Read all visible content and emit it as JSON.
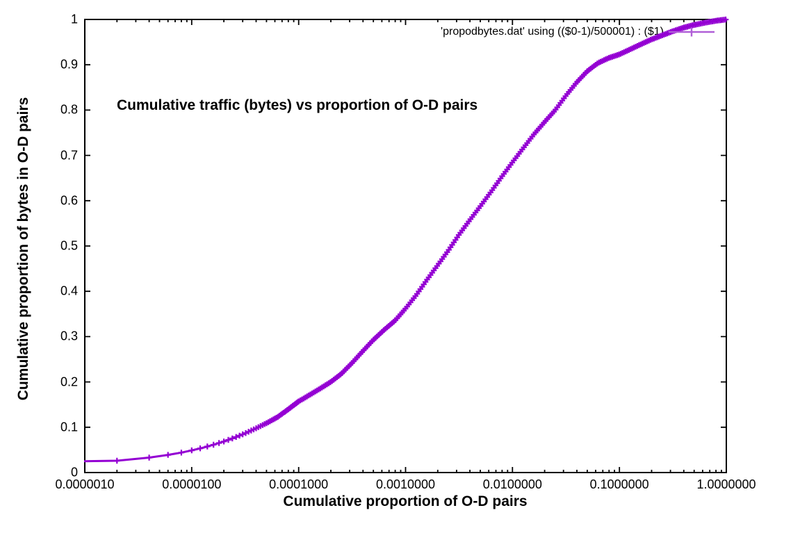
{
  "window": {
    "background": "#ffffff"
  },
  "chart_data": {
    "type": "line",
    "title": "Cumulative traffic (bytes) vs proportion of O-D pairs",
    "xlabel": "Cumulative proportion of O-D pairs",
    "ylabel": "Cumulative proportion of bytes in O-D pairs",
    "legend": {
      "label": "'propodbytes.dat' using (($0-1)/500001) : ($1)",
      "position": "top-right-inside",
      "sample_color": "#b05fd7"
    },
    "x_scale": "log10",
    "xlim": [
      1e-06,
      1.0
    ],
    "ylim": [
      0,
      1
    ],
    "grid": false,
    "colors": {
      "curve": "#9400d3",
      "axis": "#000000",
      "text": "#000000"
    },
    "x_tick_values": [
      1e-06,
      1e-05,
      0.0001,
      0.001,
      0.01,
      0.1,
      1.0
    ],
    "x_tick_labels": [
      "0.0000010",
      "0.0000100",
      "0.0001000",
      "0.0010000",
      "0.0100000",
      "0.1000000",
      "1.0000000"
    ],
    "y_tick_values": [
      0,
      0.1,
      0.2,
      0.3,
      0.4,
      0.5,
      0.6,
      0.7,
      0.8,
      0.9,
      1
    ],
    "y_tick_labels": [
      "0",
      "0.1",
      "0.2",
      "0.3",
      "0.4",
      "0.5",
      "0.6",
      "0.7",
      "0.8",
      "0.9",
      "1"
    ],
    "series": [
      {
        "name": "propodbytes.dat",
        "color": "#9400d3",
        "marker": "plus",
        "style": "linespoints",
        "n_points_label": "500001",
        "points": [
          [
            1e-06,
            0.025
          ],
          [
            2e-06,
            0.026
          ],
          [
            4e-06,
            0.033
          ],
          [
            6e-06,
            0.039
          ],
          [
            8e-06,
            0.044
          ],
          [
            1e-05,
            0.049
          ],
          [
            1.26e-05,
            0.0545
          ],
          [
            1.58e-05,
            0.061
          ],
          [
            2e-05,
            0.0685
          ],
          [
            2.51e-05,
            0.077
          ],
          [
            3.16e-05,
            0.0865
          ],
          [
            3.98e-05,
            0.0975
          ],
          [
            5.01e-05,
            0.109
          ],
          [
            6.31e-05,
            0.122
          ],
          [
            7.94e-05,
            0.139
          ],
          [
            0.0001,
            0.157
          ],
          [
            0.000126,
            0.171
          ],
          [
            0.000158,
            0.185
          ],
          [
            0.0002,
            0.2
          ],
          [
            0.000251,
            0.218
          ],
          [
            0.000316,
            0.242
          ],
          [
            0.000398,
            0.268
          ],
          [
            0.000501,
            0.293
          ],
          [
            0.000631,
            0.315
          ],
          [
            0.000794,
            0.335
          ],
          [
            0.001,
            0.362
          ],
          [
            0.00126,
            0.392
          ],
          [
            0.00158,
            0.425
          ],
          [
            0.002,
            0.458
          ],
          [
            0.00251,
            0.49
          ],
          [
            0.00316,
            0.525
          ],
          [
            0.00398,
            0.557
          ],
          [
            0.00501,
            0.588
          ],
          [
            0.00631,
            0.62
          ],
          [
            0.00794,
            0.653
          ],
          [
            0.01,
            0.685
          ],
          [
            0.0126,
            0.716
          ],
          [
            0.0158,
            0.746
          ],
          [
            0.02,
            0.774
          ],
          [
            0.0251,
            0.8
          ],
          [
            0.0316,
            0.832
          ],
          [
            0.0398,
            0.861
          ],
          [
            0.0501,
            0.886
          ],
          [
            0.0631,
            0.904
          ],
          [
            0.0794,
            0.915
          ],
          [
            0.1,
            0.923
          ],
          [
            0.126,
            0.934
          ],
          [
            0.158,
            0.945
          ],
          [
            0.2,
            0.956
          ],
          [
            0.251,
            0.965
          ],
          [
            0.316,
            0.974
          ],
          [
            0.398,
            0.982
          ],
          [
            0.501,
            0.988
          ],
          [
            0.631,
            0.993
          ],
          [
            0.794,
            0.997
          ],
          [
            1.0,
            1.0
          ]
        ]
      }
    ]
  }
}
